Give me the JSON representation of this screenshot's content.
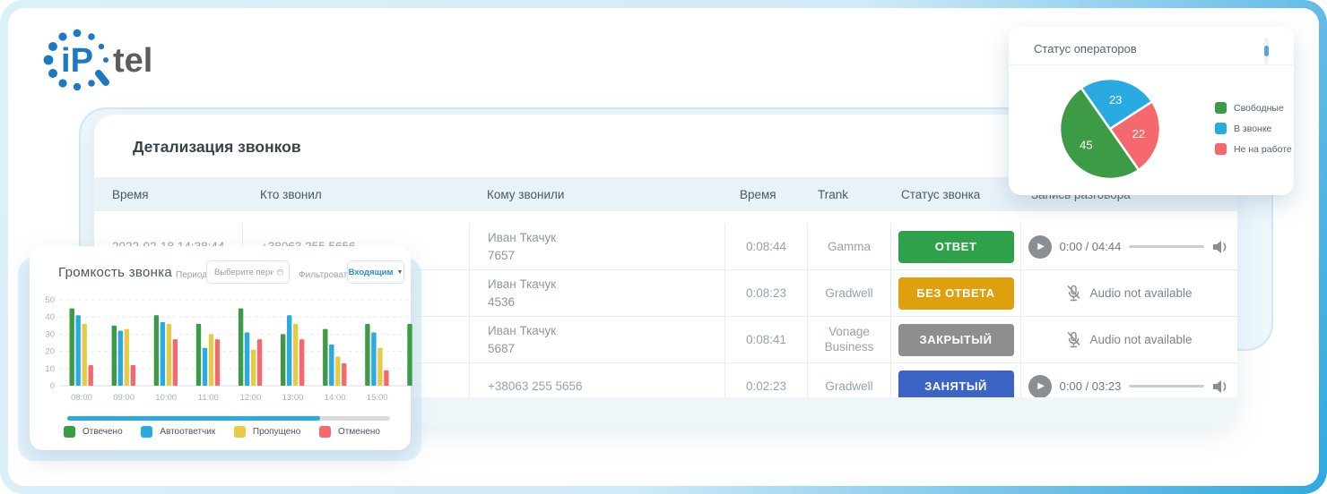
{
  "brand": {
    "ip": "iP",
    "tel": "tel"
  },
  "calls_panel": {
    "title": "Детализация звонков",
    "columns": {
      "time": "Время",
      "caller": "Кто звонил",
      "callee": "Кому звонили",
      "duration": "Время",
      "trunk": "Trank",
      "status": "Статус звонка",
      "record": "Запись разговора"
    },
    "rows": [
      {
        "time": "2022-02-18 14:38:44",
        "caller": "+38063 255 5656",
        "callee_line1": "Иван Ткачук",
        "callee_line2": "7657",
        "duration": "0:08:44",
        "trunk": "Gamma",
        "status": "ОТВЕТ",
        "status_color": "#2fa14b",
        "audio_type": "player",
        "audio_time": "0:00 / 04:44"
      },
      {
        "time": "",
        "caller": "",
        "callee_line1": "Иван Ткачук",
        "callee_line2": "4536",
        "duration": "0:08:23",
        "trunk": "Gradwell",
        "status": "БЕЗ ОТВЕТА",
        "status_color": "#dfa00f",
        "audio_type": "unavailable",
        "audio_unavailable": "Audio not available"
      },
      {
        "time": "",
        "caller": "",
        "callee_line1": "Иван Ткачук",
        "callee_line2": "5687",
        "duration": "0:08:41",
        "trunk": "Vonage Business",
        "status": "ЗАКРЫТЫЙ",
        "status_color": "#8c8e90",
        "audio_type": "unavailable",
        "audio_unavailable": "Audio not available"
      },
      {
        "time": "",
        "caller": "",
        "callee_line1": "+38063 255 5656",
        "callee_line2": "",
        "duration": "0:02:23",
        "trunk": "Gradwell",
        "status": "ЗАНЯТЫЙ",
        "status_color": "#3c64c5",
        "audio_type": "player",
        "audio_time": "0:00 / 03:23"
      }
    ]
  },
  "operators_card": {
    "title": "Статус операторов"
  },
  "volume_card": {
    "title": "Громкость звонка",
    "period_label": "Период:",
    "period_placeholder": "Выберите период",
    "filter_label": "Фильтровать по:",
    "filter_value": "Входящим"
  },
  "chart_data": [
    {
      "type": "pie",
      "title": "Статус операторов",
      "labels": [
        "Свободные",
        "В звонке",
        "Не на работе"
      ],
      "values": [
        45,
        23,
        22
      ],
      "colors": [
        "#3d9b46",
        "#29abe2",
        "#f5696e"
      ],
      "start_angle_deg": 145,
      "legend_position": "right"
    },
    {
      "type": "bar",
      "title": "Громкость звонка",
      "categories": [
        "08:00",
        "09:00",
        "10:00",
        "11:00",
        "12:00",
        "13:00",
        "14:00",
        "15:00",
        ""
      ],
      "series": [
        {
          "name": "Отвечено",
          "color": "#3d9b46",
          "values": [
            45,
            35,
            41,
            36,
            45,
            30,
            33,
            36,
            36
          ]
        },
        {
          "name": "Автоответчик",
          "color": "#29abe2",
          "values": [
            41,
            32,
            37,
            22,
            31,
            41,
            24,
            31,
            null
          ]
        },
        {
          "name": "Пропущено",
          "color": "#e7cb45",
          "values": [
            36,
            33,
            36,
            30,
            21,
            36,
            17,
            22,
            null
          ]
        },
        {
          "name": "Отменено",
          "color": "#f5696e",
          "values": [
            12,
            12,
            27,
            27,
            27,
            27,
            13,
            9,
            null
          ]
        }
      ],
      "xlabel": "",
      "ylabel": "",
      "ylim": [
        0,
        50
      ],
      "yticks": [
        0,
        10,
        20,
        30,
        40,
        50
      ],
      "grid": true,
      "legend_position": "bottom"
    }
  ]
}
